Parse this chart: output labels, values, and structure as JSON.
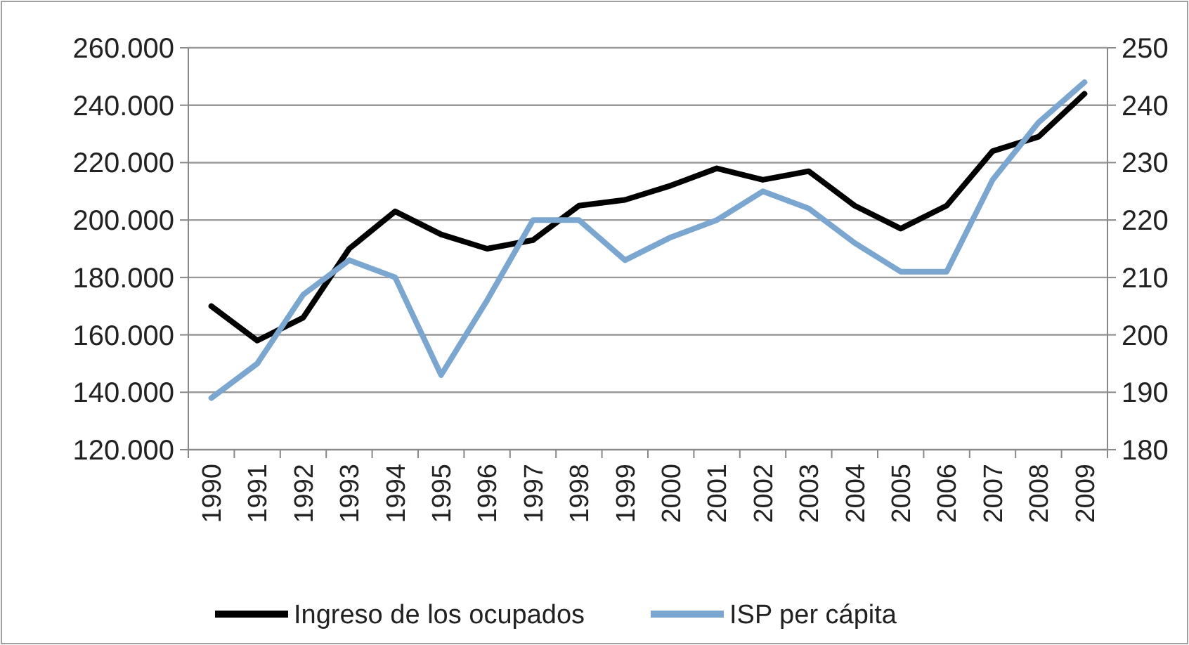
{
  "chart_data": {
    "type": "line",
    "categories": [
      "1990",
      "1991",
      "1992",
      "1993",
      "1994",
      "1995",
      "1996",
      "1997",
      "1998",
      "1999",
      "2000",
      "2001",
      "2002",
      "2003",
      "2004",
      "2005",
      "2006",
      "2007",
      "2008",
      "2009"
    ],
    "series": [
      {
        "name": "Ingreso de los ocupados",
        "color": "#000000",
        "values": [
          170000,
          158000,
          166000,
          190000,
          203000,
          195000,
          190000,
          193000,
          205000,
          207000,
          212000,
          218000,
          214000,
          217000,
          205000,
          197000,
          205000,
          224000,
          229000,
          244000
        ]
      },
      {
        "name": "ISP per cápita",
        "color": "#7aa6d0",
        "axis": "y2",
        "values": [
          189,
          195,
          207,
          213,
          210,
          193,
          206,
          220,
          220,
          213,
          217,
          220,
          225,
          222,
          216,
          211,
          211,
          227,
          237,
          244
        ]
      }
    ],
    "ylim": [
      120000,
      260000
    ],
    "yticks": [
      {
        "value": 120000,
        "label": "120.000"
      },
      {
        "value": 140000,
        "label": "140.000"
      },
      {
        "value": 160000,
        "label": "160.000"
      },
      {
        "value": 180000,
        "label": "180.000"
      },
      {
        "value": 200000,
        "label": "200.000"
      },
      {
        "value": 220000,
        "label": "220.000"
      },
      {
        "value": 240000,
        "label": "240.000"
      },
      {
        "value": 260000,
        "label": "260.000"
      }
    ],
    "y2lim": [
      180,
      250
    ],
    "y2ticks": [
      180,
      190,
      200,
      210,
      220,
      230,
      240,
      250
    ],
    "grid": "y",
    "legend": "bottom",
    "marker": "none",
    "line_style": "solid"
  }
}
